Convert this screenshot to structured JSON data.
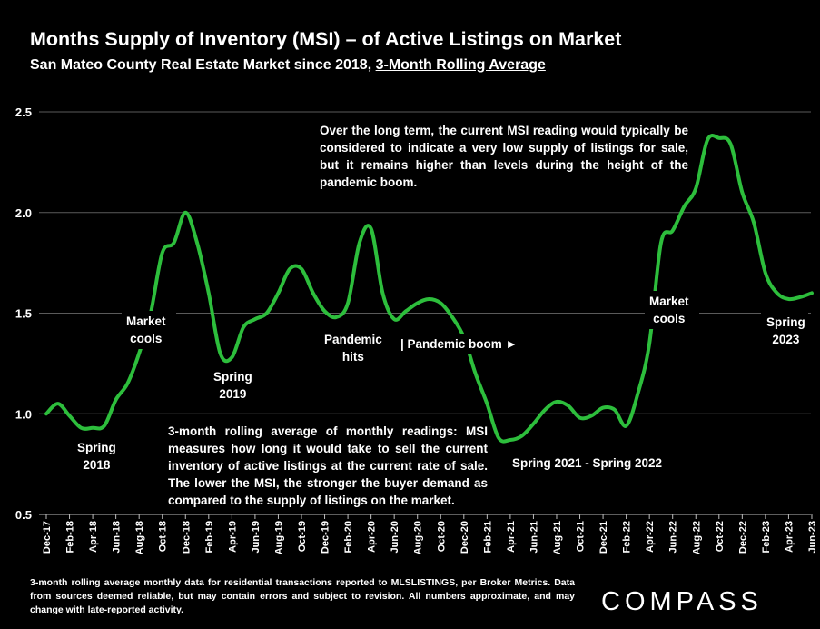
{
  "header": {
    "title": "Months Supply of Inventory (MSI) – of Active Listings on Market",
    "subtitle_prefix": "San Mateo County Real Estate Market since 2018, ",
    "subtitle_underlined": "3-Month Rolling Average"
  },
  "chart_data": {
    "type": "line",
    "ylim": [
      0.5,
      2.5
    ],
    "yticks": [
      "0.5",
      "1.0",
      "1.5",
      "2.0",
      "2.5"
    ],
    "grid": true,
    "series_color": "#2dbe3c",
    "x": [
      "Dec-17",
      "Jan-18",
      "Feb-18",
      "Mar-18",
      "Apr-18",
      "May-18",
      "Jun-18",
      "Jul-18",
      "Aug-18",
      "Sep-18",
      "Oct-18",
      "Nov-18",
      "Dec-18",
      "Jan-19",
      "Feb-19",
      "Mar-19",
      "Apr-19",
      "May-19",
      "Jun-19",
      "Jul-19",
      "Aug-19",
      "Sep-19",
      "Oct-19",
      "Nov-19",
      "Dec-19",
      "Jan-20",
      "Feb-20",
      "Mar-20",
      "Apr-20",
      "May-20",
      "Jun-20",
      "Jul-20",
      "Aug-20",
      "Sep-20",
      "Oct-20",
      "Nov-20",
      "Dec-20",
      "Jan-21",
      "Feb-21",
      "Mar-21",
      "Apr-21",
      "May-21",
      "Jun-21",
      "Jul-21",
      "Aug-21",
      "Sep-21",
      "Oct-21",
      "Nov-21",
      "Dec-21",
      "Jan-22",
      "Feb-22",
      "Mar-22",
      "Apr-22",
      "May-22",
      "Jun-22",
      "Jul-22",
      "Aug-22",
      "Sep-22",
      "Oct-22",
      "Nov-22",
      "Dec-22",
      "Jan-23",
      "Feb-23",
      "Mar-23",
      "Apr-23",
      "May-23",
      "Jun-23"
    ],
    "tick_labels": [
      "Dec-17",
      "Feb-18",
      "Apr-18",
      "Jun-18",
      "Aug-18",
      "Oct-18",
      "Dec-18",
      "Feb-19",
      "Apr-19",
      "Jun-19",
      "Aug-19",
      "Oct-19",
      "Dec-19",
      "Feb-20",
      "Apr-20",
      "Jun-20",
      "Aug-20",
      "Oct-20",
      "Dec-20",
      "Feb-21",
      "Apr-21",
      "Jun-21",
      "Aug-21",
      "Oct-21",
      "Dec-21",
      "Feb-22",
      "Apr-22",
      "Jun-22",
      "Aug-22",
      "Oct-22",
      "Dec-22",
      "Feb-23",
      "Apr-23",
      "Jun-23"
    ],
    "values": [
      1.0,
      1.05,
      0.99,
      0.93,
      0.93,
      0.94,
      1.07,
      1.15,
      1.3,
      1.5,
      1.8,
      1.85,
      2.0,
      1.85,
      1.6,
      1.3,
      1.28,
      1.43,
      1.47,
      1.5,
      1.6,
      1.72,
      1.72,
      1.6,
      1.51,
      1.48,
      1.55,
      1.85,
      1.92,
      1.6,
      1.47,
      1.51,
      1.55,
      1.57,
      1.55,
      1.48,
      1.38,
      1.2,
      1.05,
      0.88,
      0.87,
      0.89,
      0.95,
      1.02,
      1.06,
      1.04,
      0.98,
      0.99,
      1.03,
      1.02,
      0.94,
      1.1,
      1.35,
      1.85,
      1.91,
      2.03,
      2.12,
      2.36,
      2.37,
      2.34,
      2.1,
      1.95,
      1.7,
      1.6,
      1.57,
      1.58,
      1.6
    ]
  },
  "annotations": {
    "spring_2018": [
      "Spring",
      "2018"
    ],
    "market_cools_1": [
      "Market",
      "cools"
    ],
    "spring_2019": [
      "Spring",
      "2019"
    ],
    "pandemic_hits": [
      "Pandemic",
      "hits"
    ],
    "pandemic_boom": "| Pandemic boom ►",
    "spring_2021_2022": "Spring 2021 - Spring 2022",
    "market_cools_2": [
      "Market",
      "cools"
    ],
    "spring_2023": [
      "Spring",
      "2023"
    ],
    "long_term_note": "Over the long term, the current MSI reading would typically be considered to indicate a very low supply of listings for sale, but it remains higher than levels during the height of the pandemic boom.",
    "msi_note": "3-month rolling average of monthly readings: MSI measures how long it would take to sell the current inventory of active listings at the current rate of sale. The lower the MSI, the stronger the buyer demand as compared to the supply of listings on the market."
  },
  "footer": {
    "footnote": "3-month rolling average monthly data for residential transactions reported to MLSLISTINGS, per Broker Metrics. Data from sources deemed reliable, but may contain errors and subject to revision. All numbers approximate, and may change with late-reported activity.",
    "logo": "COMPASS"
  }
}
